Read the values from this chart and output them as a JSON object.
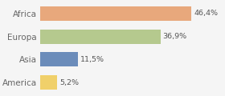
{
  "categories": [
    "Africa",
    "Europa",
    "Asia",
    "America"
  ],
  "values": [
    46.4,
    36.9,
    11.5,
    5.2
  ],
  "labels": [
    "46,4%",
    "36,9%",
    "11,5%",
    "5,2%"
  ],
  "bar_colors": [
    "#e8a87c",
    "#b5c98e",
    "#6b8cba",
    "#f0d06a"
  ],
  "background_color": "#f5f5f5",
  "xlim": [
    0,
    56
  ],
  "figsize": [
    2.8,
    1.2
  ],
  "dpi": 100
}
